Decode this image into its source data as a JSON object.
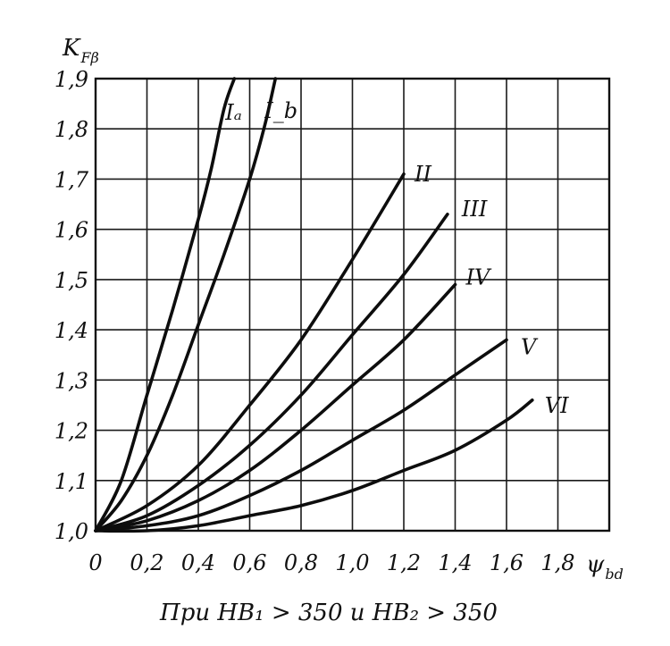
{
  "chart_data": {
    "type": "line",
    "title": "",
    "ylabel": "K",
    "ylabel_sub": "Fβ",
    "xlabel": "ψ",
    "xlabel_sub": "bd",
    "xlim": [
      0,
      2.0
    ],
    "ylim": [
      1.0,
      1.9
    ],
    "x_ticks": [
      "0",
      "0,2",
      "0,4",
      "0,6",
      "0,8",
      "1,0",
      "1,2",
      "1,4",
      "1,6",
      "1,8"
    ],
    "y_ticks": [
      "1,0",
      "1,1",
      "1,2",
      "1,3",
      "1,4",
      "1,5",
      "1,6",
      "1,7",
      "1,8",
      "1,9"
    ],
    "grid": true,
    "caption": "При НВ₁ > 350 и НВ₂ > 350",
    "series": [
      {
        "name": "Iₐ",
        "x": [
          0,
          0.1,
          0.2,
          0.3,
          0.4,
          0.45,
          0.5,
          0.54
        ],
        "y": [
          1.0,
          1.1,
          1.27,
          1.44,
          1.62,
          1.72,
          1.84,
          1.9
        ]
      },
      {
        "name": "I_b",
        "x": [
          0,
          0.1,
          0.2,
          0.3,
          0.4,
          0.5,
          0.6,
          0.66,
          0.7
        ],
        "y": [
          1.0,
          1.06,
          1.15,
          1.27,
          1.41,
          1.55,
          1.7,
          1.81,
          1.9
        ]
      },
      {
        "name": "II",
        "x": [
          0,
          0.2,
          0.4,
          0.6,
          0.8,
          1.0,
          1.2
        ],
        "y": [
          1.0,
          1.05,
          1.13,
          1.25,
          1.38,
          1.54,
          1.71
        ]
      },
      {
        "name": "III",
        "x": [
          0,
          0.2,
          0.4,
          0.6,
          0.8,
          1.0,
          1.2,
          1.37
        ],
        "y": [
          1.0,
          1.03,
          1.09,
          1.17,
          1.27,
          1.39,
          1.51,
          1.63
        ]
      },
      {
        "name": "IV",
        "x": [
          0,
          0.2,
          0.4,
          0.6,
          0.8,
          1.0,
          1.2,
          1.4
        ],
        "y": [
          1.0,
          1.02,
          1.06,
          1.12,
          1.2,
          1.29,
          1.38,
          1.49
        ]
      },
      {
        "name": "V",
        "x": [
          0,
          0.2,
          0.4,
          0.6,
          0.8,
          1.0,
          1.2,
          1.4,
          1.6
        ],
        "y": [
          1.0,
          1.01,
          1.03,
          1.07,
          1.12,
          1.18,
          1.24,
          1.31,
          1.38
        ]
      },
      {
        "name": "VI",
        "x": [
          0,
          0.2,
          0.4,
          0.6,
          0.8,
          1.0,
          1.2,
          1.4,
          1.6,
          1.7
        ],
        "y": [
          1.0,
          1.0,
          1.01,
          1.03,
          1.05,
          1.08,
          1.12,
          1.16,
          1.22,
          1.26
        ]
      }
    ]
  }
}
